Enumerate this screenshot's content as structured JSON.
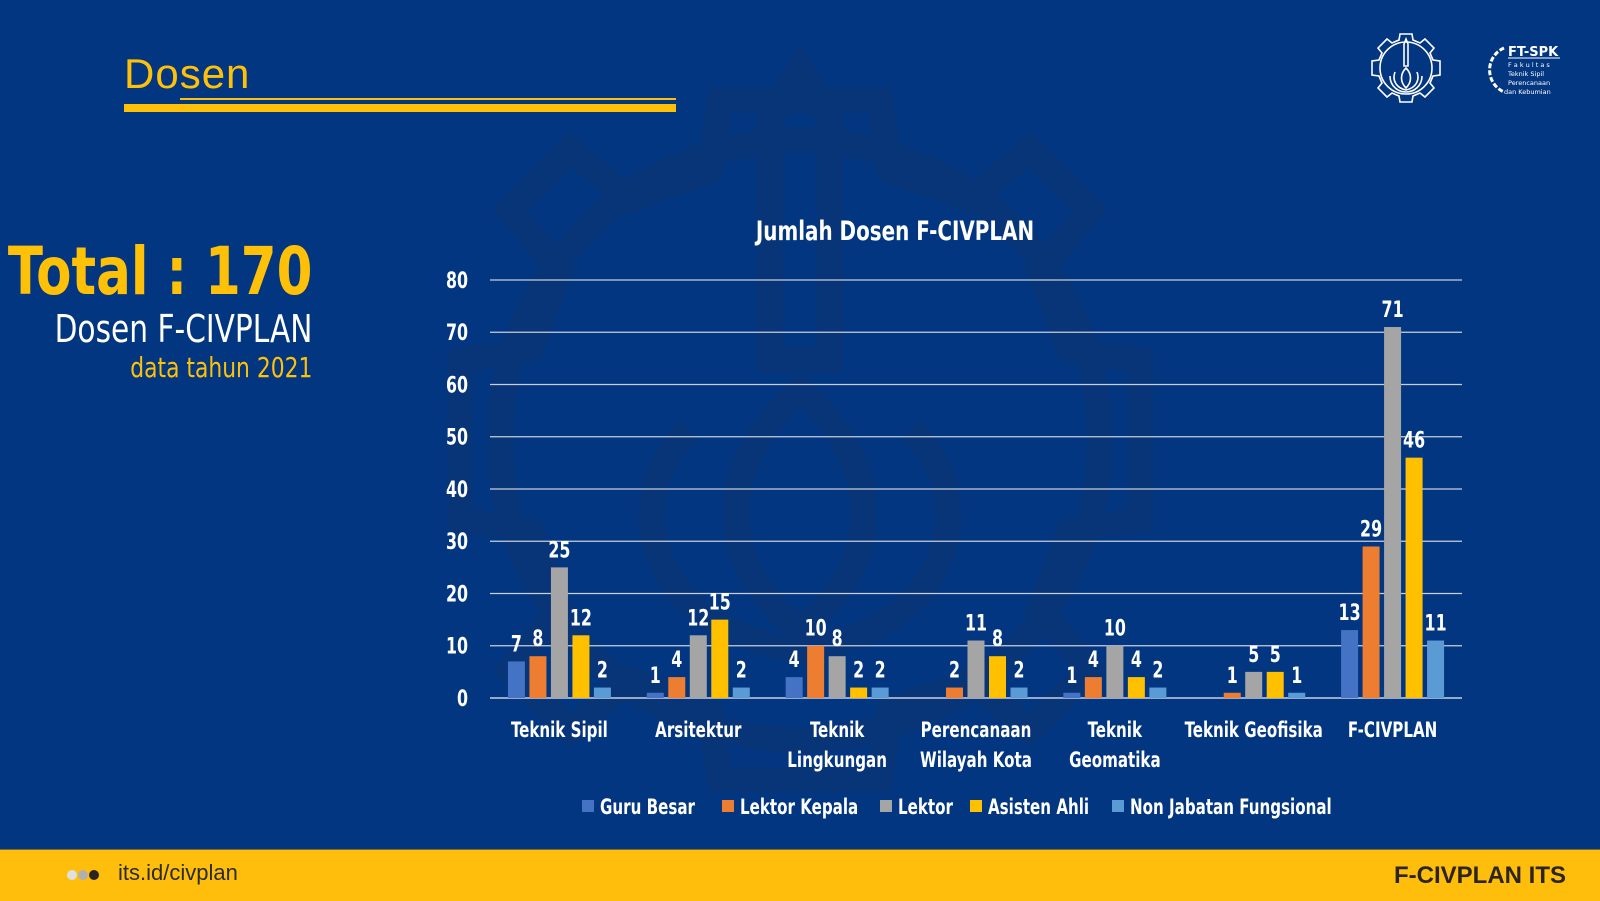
{
  "slide": {
    "title": "Dosen",
    "logos": [
      {
        "name": "its-logo-icon"
      },
      {
        "name": "ft-spk-logo-icon",
        "text": "FT-SPK",
        "lines": [
          "F a k u l t a s",
          "Teknik  Sipil",
          "Perencanaan",
          "dan Kebumian"
        ]
      }
    ]
  },
  "summary": {
    "total": "Total : 170",
    "subtitle": "Dosen F-CIVPLAN",
    "year_note": "data tahun 2021"
  },
  "footer": {
    "url": "its.id/civplan",
    "brand": "F-CIVPLAN ITS",
    "dot_colors": [
      "#E0E0E0",
      "#B0B0B0",
      "#2B2420"
    ]
  },
  "colors": {
    "background": "#023680",
    "accent": "#FFC107",
    "footer": "#FFBE0B"
  },
  "chart_data": {
    "type": "bar",
    "title": "Jumlah Dosen F-CIVPLAN",
    "xlabel": "",
    "ylabel": "",
    "ylim": [
      0,
      80
    ],
    "yticks": [
      0,
      10,
      20,
      30,
      40,
      50,
      60,
      70,
      80
    ],
    "grid": true,
    "legend_position": "bottom",
    "categories": [
      [
        "Teknik Sipil"
      ],
      [
        "Arsitektur"
      ],
      [
        "Teknik",
        "Lingkungan"
      ],
      [
        "Perencanaan",
        "Wilayah Kota"
      ],
      [
        "Teknik",
        "Geomatika"
      ],
      [
        "Teknik Geofisika"
      ],
      [
        "F-CIVPLAN"
      ]
    ],
    "series": [
      {
        "name": "Guru Besar",
        "color": "#4472C4",
        "values": [
          7,
          1,
          4,
          0,
          1,
          0,
          13
        ]
      },
      {
        "name": "Lektor Kepala",
        "color": "#ED7D31",
        "values": [
          8,
          4,
          10,
          2,
          4,
          1,
          29
        ]
      },
      {
        "name": "Lektor",
        "color": "#A5A5A5",
        "values": [
          25,
          12,
          8,
          11,
          10,
          5,
          71
        ]
      },
      {
        "name": "Asisten Ahli",
        "color": "#FFC000",
        "values": [
          12,
          15,
          2,
          8,
          4,
          5,
          46
        ]
      },
      {
        "name": "Non Jabatan Fungsional",
        "color": "#5B9BD5",
        "values": [
          2,
          2,
          2,
          2,
          2,
          1,
          11
        ]
      }
    ]
  }
}
